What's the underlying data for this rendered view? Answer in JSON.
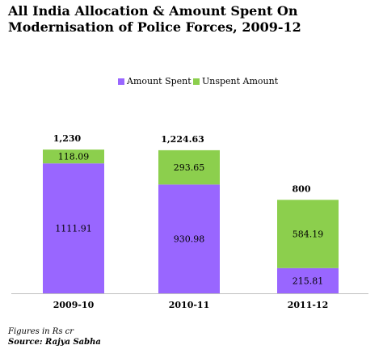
{
  "title_line1": "All India Allocation & Amount Spent On",
  "title_line2": "Modernisation of Police Forces, 2009-12",
  "footnote": "Figures in Rs cr",
  "source": "Source: Rajya Sabha",
  "colors": {
    "spent": "#9966ff",
    "unspent": "#8ccf4d",
    "axis": "#bfbfbf"
  },
  "chart_data": {
    "type": "bar",
    "stacked": true,
    "categories": [
      "2009-10",
      "2010-11",
      "2011-12"
    ],
    "series": [
      {
        "name": "Amount Spent",
        "values": [
          1111.91,
          930.98,
          215.81
        ],
        "labels": [
          "1111.91",
          "930.98",
          "215.81"
        ]
      },
      {
        "name": "Unspent Amount",
        "values": [
          118.09,
          293.65,
          584.19
        ],
        "labels": [
          "118.09",
          "293.65",
          "584.19"
        ]
      }
    ],
    "totals": [
      1230,
      1224.63,
      800
    ],
    "total_labels": [
      "1,230",
      "1,224.63",
      "800"
    ],
    "legend_position": "top",
    "ylim": [
      0,
      1300
    ],
    "grid": false
  }
}
